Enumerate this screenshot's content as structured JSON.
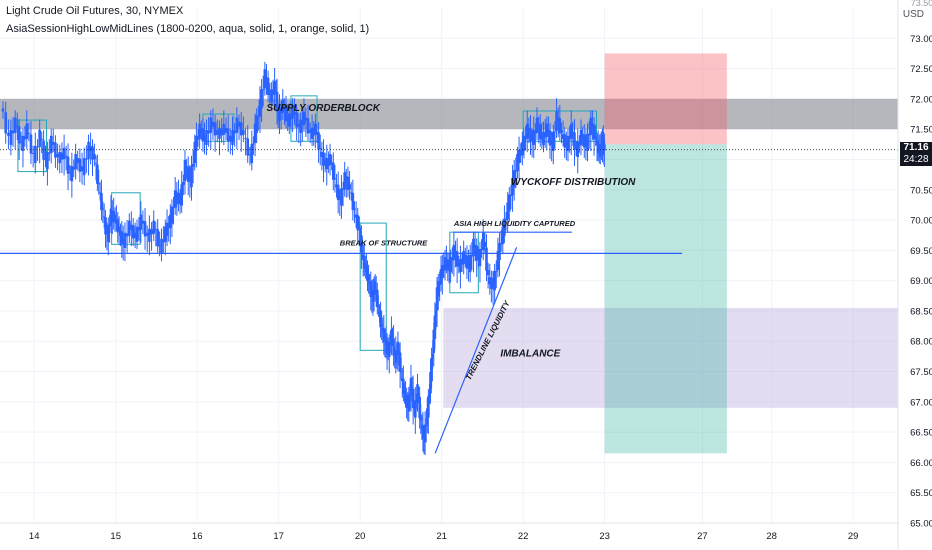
{
  "header": {
    "title": "Light Crude Oil Futures, 30, NYMEX",
    "indicator": "AsiaSessionHighLowMidLines (1800-0200, aqua, solid, 1, orange, solid, 1)"
  },
  "axis": {
    "currency": "USD",
    "current_price": "71.16",
    "countdown": "24:28",
    "top_cut_label": "73.50"
  },
  "chart_data": {
    "type": "candlestick",
    "symbol": "Light Crude Oil Futures",
    "interval": "30",
    "exchange": "NYMEX",
    "ylim": [
      65.0,
      73.5
    ],
    "y_ticks": [
      "73.00",
      "72.50",
      "72.00",
      "71.50",
      "71.00",
      "70.50",
      "70.00",
      "69.50",
      "69.00",
      "68.50",
      "68.00",
      "67.50",
      "67.00",
      "66.50",
      "66.00",
      "65.50",
      "65.00"
    ],
    "x_ticks": [
      {
        "label": "14",
        "x": 0
      },
      {
        "label": "15",
        "x": 1
      },
      {
        "label": "16",
        "x": 2
      },
      {
        "label": "17",
        "x": 3
      },
      {
        "label": "20",
        "x": 4
      },
      {
        "label": "21",
        "x": 5
      },
      {
        "label": "22",
        "x": 6
      },
      {
        "label": "23",
        "x": 7
      },
      {
        "label": "27",
        "x": 8.2
      },
      {
        "label": "28",
        "x": 9.05
      },
      {
        "label": "29",
        "x": 10.05
      }
    ],
    "close_path": [
      [
        -0.4,
        71.9
      ],
      [
        -0.3,
        71.3
      ],
      [
        -0.22,
        71.6
      ],
      [
        -0.15,
        71.2
      ],
      [
        -0.08,
        71.5
      ],
      [
        0.0,
        71.0
      ],
      [
        0.08,
        71.4
      ],
      [
        0.15,
        70.9
      ],
      [
        0.22,
        71.3
      ],
      [
        0.3,
        71.0
      ],
      [
        0.38,
        71.1
      ],
      [
        0.45,
        70.7
      ],
      [
        0.52,
        71.0
      ],
      [
        0.6,
        70.8
      ],
      [
        0.68,
        71.2
      ],
      [
        0.75,
        71.0
      ],
      [
        0.8,
        70.5
      ],
      [
        0.85,
        70.1
      ],
      [
        0.9,
        69.7
      ],
      [
        0.95,
        70.1
      ],
      [
        1.0,
        70.0
      ],
      [
        1.05,
        69.8
      ],
      [
        1.1,
        69.6
      ],
      [
        1.18,
        69.9
      ],
      [
        1.25,
        69.7
      ],
      [
        1.32,
        70.0
      ],
      [
        1.4,
        69.7
      ],
      [
        1.48,
        69.9
      ],
      [
        1.55,
        69.5
      ],
      [
        1.62,
        69.8
      ],
      [
        1.68,
        70.0
      ],
      [
        1.74,
        70.4
      ],
      [
        1.8,
        70.3
      ],
      [
        1.86,
        70.9
      ],
      [
        1.92,
        70.6
      ],
      [
        1.98,
        71.2
      ],
      [
        2.04,
        71.5
      ],
      [
        2.1,
        71.3
      ],
      [
        2.18,
        71.6
      ],
      [
        2.26,
        71.4
      ],
      [
        2.34,
        71.5
      ],
      [
        2.42,
        71.3
      ],
      [
        2.5,
        71.6
      ],
      [
        2.58,
        71.4
      ],
      [
        2.66,
        71.0
      ],
      [
        2.72,
        71.5
      ],
      [
        2.78,
        71.9
      ],
      [
        2.84,
        72.4
      ],
      [
        2.9,
        72.0
      ],
      [
        2.96,
        72.2
      ],
      [
        3.0,
        71.7
      ],
      [
        3.06,
        71.9
      ],
      [
        3.12,
        71.6
      ],
      [
        3.18,
        71.8
      ],
      [
        3.26,
        71.5
      ],
      [
        3.32,
        71.7
      ],
      [
        3.4,
        71.4
      ],
      [
        3.46,
        71.5
      ],
      [
        3.52,
        71.1
      ],
      [
        3.58,
        70.9
      ],
      [
        3.64,
        71.0
      ],
      [
        3.7,
        70.6
      ],
      [
        3.76,
        70.3
      ],
      [
        3.82,
        70.7
      ],
      [
        3.88,
        70.5
      ],
      [
        3.94,
        70.1
      ],
      [
        4.0,
        69.8
      ],
      [
        4.03,
        69.4
      ],
      [
        4.07,
        69.2
      ],
      [
        4.11,
        69.0
      ],
      [
        4.15,
        68.7
      ],
      [
        4.19,
        68.9
      ],
      [
        4.23,
        68.5
      ],
      [
        4.27,
        68.2
      ],
      [
        4.31,
        68.0
      ],
      [
        4.35,
        67.8
      ],
      [
        4.39,
        68.1
      ],
      [
        4.43,
        67.7
      ],
      [
        4.47,
        67.9
      ],
      [
        4.51,
        67.4
      ],
      [
        4.55,
        67.1
      ],
      [
        4.59,
        66.9
      ],
      [
        4.63,
        67.3
      ],
      [
        4.67,
        66.8
      ],
      [
        4.71,
        67.2
      ],
      [
        4.75,
        66.6
      ],
      [
        4.79,
        66.4
      ],
      [
        4.83,
        66.8
      ],
      [
        4.87,
        67.4
      ],
      [
        4.91,
        68.1
      ],
      [
        4.95,
        68.8
      ],
      [
        5.0,
        69.1
      ],
      [
        5.05,
        69.3
      ],
      [
        5.1,
        69.2
      ],
      [
        5.16,
        69.5
      ],
      [
        5.22,
        69.2
      ],
      [
        5.28,
        69.4
      ],
      [
        5.34,
        69.2
      ],
      [
        5.4,
        69.6
      ],
      [
        5.46,
        69.3
      ],
      [
        5.52,
        69.7
      ],
      [
        5.58,
        69.0
      ],
      [
        5.64,
        68.9
      ],
      [
        5.7,
        69.4
      ],
      [
        5.76,
        69.8
      ],
      [
        5.82,
        70.2
      ],
      [
        5.88,
        70.6
      ],
      [
        5.94,
        71.0
      ],
      [
        6.0,
        71.2
      ],
      [
        6.06,
        71.5
      ],
      [
        6.12,
        71.3
      ],
      [
        6.18,
        71.6
      ],
      [
        6.24,
        71.3
      ],
      [
        6.3,
        71.5
      ],
      [
        6.36,
        71.2
      ],
      [
        6.42,
        71.7
      ],
      [
        6.48,
        71.4
      ],
      [
        6.54,
        71.2
      ],
      [
        6.6,
        71.5
      ],
      [
        6.66,
        71.1
      ],
      [
        6.72,
        71.4
      ],
      [
        6.78,
        71.2
      ],
      [
        6.84,
        71.6
      ],
      [
        6.9,
        71.3
      ],
      [
        6.94,
        71.1
      ],
      [
        6.98,
        71.3
      ],
      [
        7.0,
        71.16
      ]
    ],
    "lines": [
      {
        "name": "BREAK OF STRUCTURE",
        "from": [
          -0.55,
          69.45
        ],
        "to": [
          7.95,
          69.45
        ]
      },
      {
        "name": "ASIA HIGH LIQUIDITY CAPTURED",
        "from": [
          5.15,
          69.8
        ],
        "to": [
          6.6,
          69.8
        ]
      },
      {
        "name": "TRENDLINE LIQUIDITY",
        "from": [
          4.92,
          66.15
        ],
        "to": [
          5.92,
          69.55
        ]
      }
    ],
    "zones": [
      {
        "name": "SUPPLY ORDERBLOCK",
        "y": [
          71.5,
          72.0
        ],
        "x": [
          -0.5,
          10.6
        ]
      },
      {
        "name": "IMBALANCE",
        "y": [
          66.9,
          68.55
        ],
        "x": [
          5.02,
          10.6
        ]
      },
      {
        "name": "stop",
        "y": [
          71.25,
          72.75
        ],
        "x": [
          7.0,
          8.5
        ]
      },
      {
        "name": "target",
        "y": [
          66.15,
          71.25
        ],
        "x": [
          7.0,
          8.5
        ]
      }
    ],
    "asia_boxes": [
      {
        "x": [
          -0.2,
          0.15
        ],
        "y": [
          70.8,
          71.65
        ]
      },
      {
        "x": [
          0.95,
          1.3
        ],
        "y": [
          69.6,
          70.45
        ]
      },
      {
        "x": [
          2.07,
          2.45
        ],
        "y": [
          71.3,
          71.75
        ]
      },
      {
        "x": [
          3.15,
          3.47
        ],
        "y": [
          71.3,
          72.05
        ]
      },
      {
        "x": [
          4.0,
          4.32
        ],
        "y": [
          67.85,
          69.95
        ]
      },
      {
        "x": [
          5.1,
          5.45
        ],
        "y": [
          68.8,
          69.8
        ]
      },
      {
        "x": [
          6.0,
          6.9
        ],
        "y": [
          71.3,
          71.8
        ]
      }
    ],
    "annotations": [
      "SUPPLY ORDERBLOCK",
      "BREAK OF STRUCTURE",
      "ASIA HIGH LIQUIDITY CAPTURED",
      "WYCKOFF DISTRIBUTION",
      "TRENDLINE LIQUIDITY",
      "IMBALANCE"
    ]
  },
  "colors": {
    "candle": "#2962ff",
    "line": "#2962ff",
    "grid": "#f0f3fa",
    "axis_text": "#131722",
    "supply_zone": "#787b86",
    "imbalance": "#b39ddb",
    "stop": "#f7525f",
    "target": "#22ab94",
    "asia_box": "#22a7b8"
  }
}
